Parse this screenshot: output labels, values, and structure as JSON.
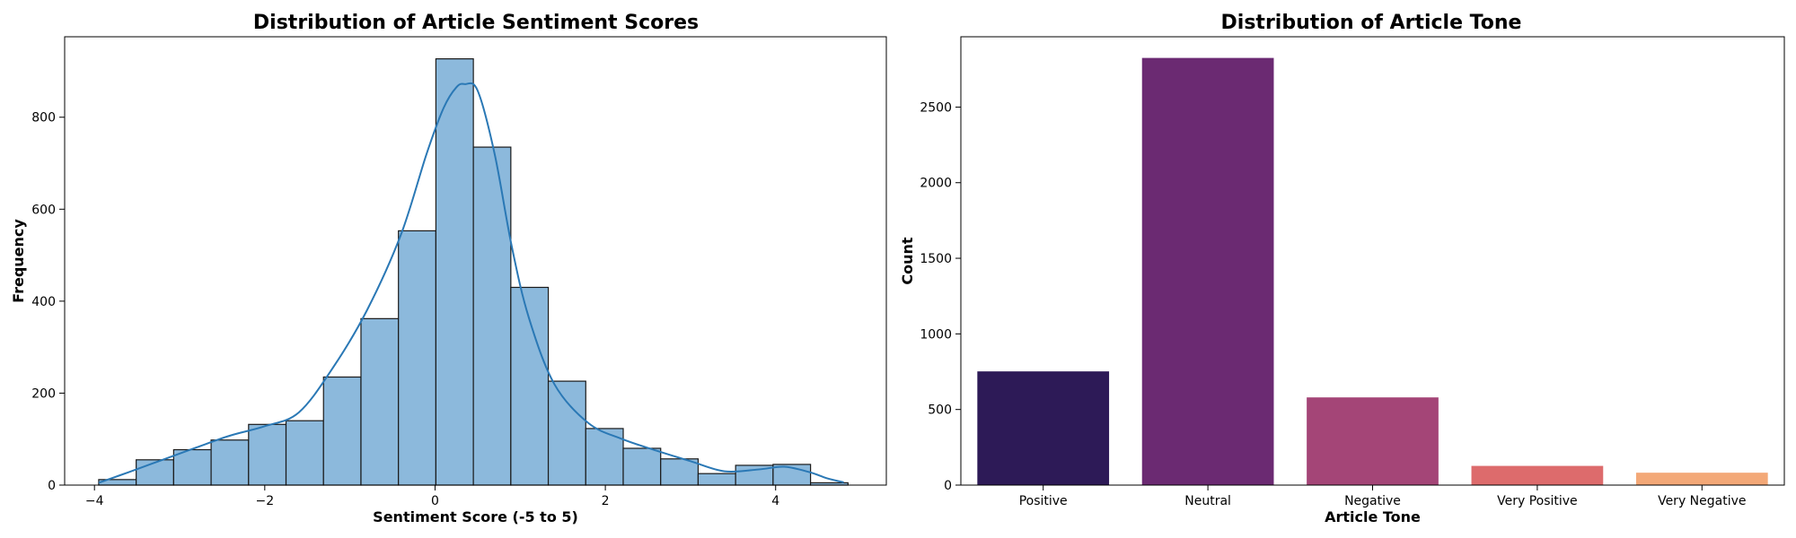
{
  "chart_data": [
    {
      "type": "histogram",
      "title": "Distribution of Article Sentiment Scores",
      "xlabel": "Sentiment Score (-5 to 5)",
      "ylabel": "Frequency",
      "xlim": [
        -4.35,
        5.3
      ],
      "ylim": [
        0,
        975
      ],
      "xticks": [
        -4,
        -2,
        0,
        2,
        4
      ],
      "xtick_labels": [
        "−4",
        "−2",
        "0",
        "2",
        "4"
      ],
      "yticks": [
        0,
        200,
        400,
        600,
        800
      ],
      "yticks_labels": [
        "0",
        "200",
        "400",
        "600",
        "800"
      ],
      "bin_edges": [
        -3.95,
        -3.51,
        -3.07,
        -2.63,
        -2.19,
        -1.75,
        -1.31,
        -0.87,
        -0.43,
        0.01,
        0.45,
        0.89,
        1.33,
        1.77,
        2.21,
        2.65,
        3.09,
        3.53,
        3.97,
        4.41,
        4.85
      ],
      "counts": [
        12,
        55,
        77,
        98,
        132,
        140,
        235,
        362,
        553,
        927,
        735,
        430,
        226,
        123,
        80,
        57,
        25,
        43,
        45,
        5
      ],
      "kde": {
        "x": [
          -3.95,
          -3.6,
          -3.2,
          -2.8,
          -2.4,
          -2.0,
          -1.6,
          -1.2,
          -0.8,
          -0.4,
          -0.1,
          0.1,
          0.25,
          0.35,
          0.5,
          0.7,
          0.9,
          1.1,
          1.4,
          1.8,
          2.2,
          2.6,
          3.0,
          3.4,
          3.8,
          4.1,
          4.4,
          4.6,
          4.8
        ],
        "y": [
          5,
          28,
          55,
          82,
          108,
          128,
          158,
          255,
          380,
          545,
          720,
          820,
          865,
          872,
          858,
          720,
          520,
          365,
          220,
          135,
          100,
          75,
          52,
          30,
          34,
          40,
          28,
          15,
          6
        ]
      },
      "bar_color": "#8cb9dc",
      "edge_color": "#1a1a1a",
      "kde_color": "#2a78b5"
    },
    {
      "type": "bar",
      "title": "Distribution of Article Tone",
      "xlabel": "Article Tone",
      "ylabel": "Count",
      "categories": [
        "Positive",
        "Neutral",
        "Negative",
        "Very Positive",
        "Very Negative"
      ],
      "values": [
        752,
        2825,
        580,
        127,
        82
      ],
      "colors": [
        "#2d1a57",
        "#6b2a72",
        "#a44577",
        "#dd6b6c",
        "#f3a877"
      ],
      "ylim": [
        0,
        2965
      ],
      "yticks": [
        0,
        500,
        1000,
        1500,
        2000,
        2500
      ],
      "ytick_labels": [
        "0",
        "500",
        "1000",
        "1500",
        "2000",
        "2500"
      ]
    }
  ]
}
